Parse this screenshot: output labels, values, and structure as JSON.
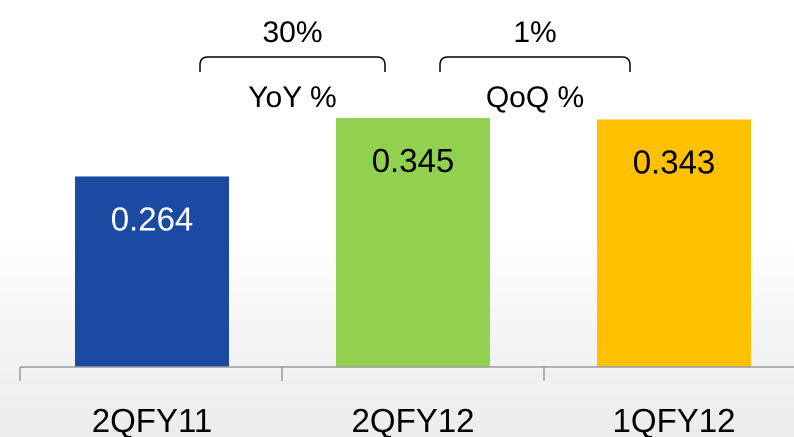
{
  "chart_data": {
    "type": "bar",
    "categories": [
      "2QFY11",
      "2QFY12",
      "1QFY12"
    ],
    "values": [
      0.264,
      0.345,
      0.343
    ],
    "value_labels": [
      "0.264",
      "0.345",
      "0.343"
    ],
    "colors": [
      "#1a4aa2",
      "#92d050",
      "#ffc000"
    ],
    "ylim": [
      0,
      0.345
    ],
    "grid": false,
    "legend": "none",
    "annotations": [
      {
        "from": 0,
        "to": 1,
        "label": "YoY %",
        "value": "30%"
      },
      {
        "from": 1,
        "to": 2,
        "label": "QoQ %",
        "value": "1%"
      }
    ]
  }
}
